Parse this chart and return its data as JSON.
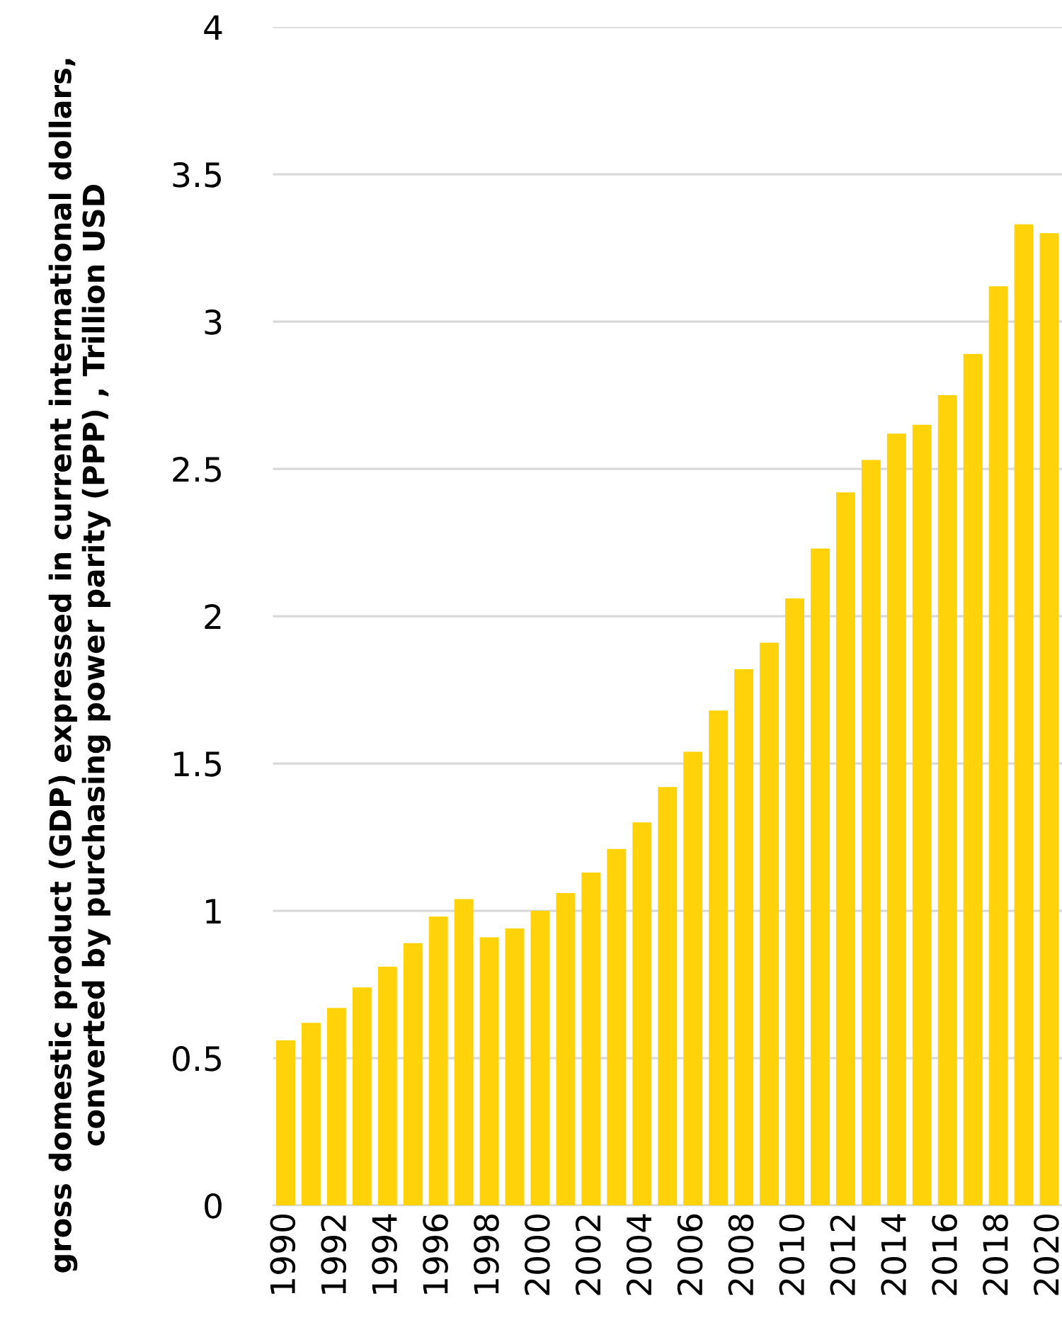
{
  "chart_data": {
    "type": "bar",
    "ylabel": "gross domestic product (GDP) expressed in current international dollars, converted by purchasing power parity (PPP) , Trillion USD",
    "categories": [
      "1990",
      null,
      "1992",
      null,
      "1994",
      null,
      "1996",
      null,
      "1998",
      null,
      "2000",
      null,
      "2002",
      null,
      "2004",
      null,
      "2006",
      null,
      "2008",
      null,
      "2010",
      null,
      "2012",
      null,
      "2014",
      null,
      "2016",
      null,
      "2018",
      null,
      "2020"
    ],
    "values": [
      0.56,
      0.62,
      0.67,
      0.74,
      0.81,
      0.89,
      0.98,
      1.04,
      0.91,
      0.94,
      1.0,
      1.06,
      1.13,
      1.21,
      1.3,
      1.42,
      1.54,
      1.68,
      1.82,
      1.91,
      2.06,
      2.23,
      2.42,
      2.53,
      2.62,
      2.65,
      2.75,
      2.89,
      3.12,
      3.33,
      3.3
    ],
    "color": "#ffd20a",
    "ylim": [
      0,
      4
    ],
    "yticks": [
      0,
      0.5,
      1,
      1.5,
      2,
      2.5,
      3,
      3.5,
      4
    ],
    "grid": "y"
  }
}
